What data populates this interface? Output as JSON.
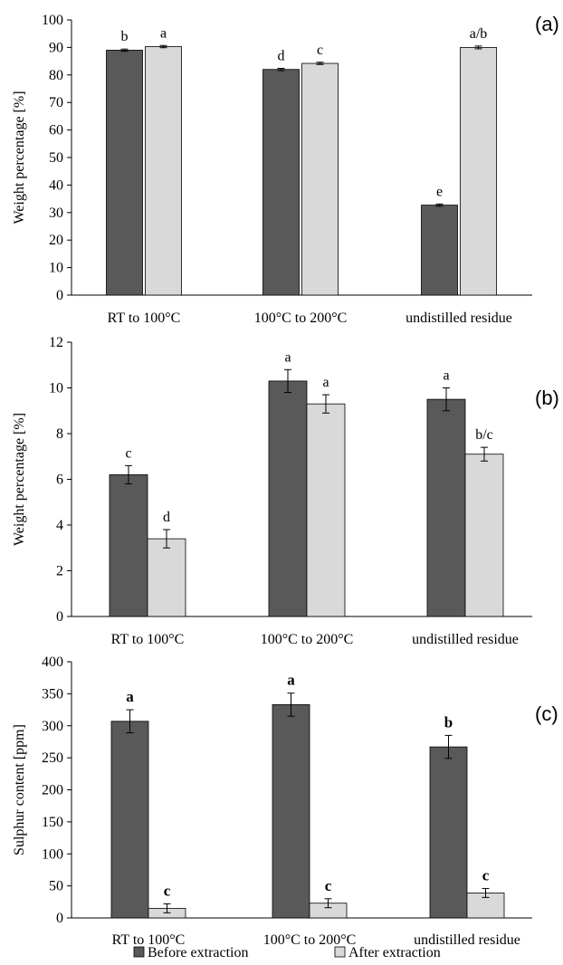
{
  "legend": [
    {
      "label": "Before extraction",
      "color": "#595959"
    },
    {
      "label": "After extraction",
      "color": "#d9d9d9"
    }
  ],
  "colors": {
    "before": "#595959",
    "after": "#d9d9d9",
    "bar_stroke": "#000000",
    "axis": "#000000"
  },
  "chart_data": [
    {
      "type": "bar",
      "panel_label": "(a)",
      "ylabel": "Weight percentage [%]",
      "categories": [
        "RT to 100°C",
        "100°C to 200°C",
        "undistilled residue"
      ],
      "ylim": [
        0,
        100
      ],
      "yticks": [
        0,
        10,
        20,
        30,
        40,
        50,
        60,
        70,
        80,
        90,
        100
      ],
      "grid": false,
      "legend_position": "bottom",
      "series": [
        {
          "name": "Before extraction",
          "values": [
            89.0,
            82.0,
            32.7
          ],
          "errors": [
            0.4,
            0.4,
            0.4
          ],
          "labels": [
            "b",
            "d",
            "e"
          ],
          "bold_labels": false
        },
        {
          "name": "After extraction",
          "values": [
            90.3,
            84.2,
            90.0
          ],
          "errors": [
            0.4,
            0.4,
            0.5
          ],
          "labels": [
            "a",
            "c",
            "a/b"
          ],
          "bold_labels": false
        }
      ]
    },
    {
      "type": "bar",
      "panel_label": "(b)",
      "ylabel": "Weight percentage [%]",
      "categories": [
        "RT to 100°C",
        "100°C to 200°C",
        "undistilled residue"
      ],
      "ylim": [
        0,
        12
      ],
      "yticks": [
        0,
        2,
        4,
        6,
        8,
        10,
        12
      ],
      "grid": false,
      "legend_position": "bottom",
      "series": [
        {
          "name": "Before extraction",
          "values": [
            6.2,
            10.3,
            9.5
          ],
          "errors": [
            0.4,
            0.5,
            0.5
          ],
          "labels": [
            "c",
            "a",
            "a"
          ],
          "bold_labels": false
        },
        {
          "name": "After extraction",
          "values": [
            3.4,
            9.3,
            7.1
          ],
          "errors": [
            0.4,
            0.4,
            0.3
          ],
          "labels": [
            "d",
            "a",
            "b/c"
          ],
          "bold_labels": false
        }
      ]
    },
    {
      "type": "bar",
      "panel_label": "(c)",
      "ylabel": "Sulphur content [ppm]",
      "categories": [
        "RT to 100°C",
        "100°C to 200°C",
        "undistilled residue"
      ],
      "ylim": [
        0,
        400
      ],
      "yticks": [
        0,
        50,
        100,
        150,
        200,
        250,
        300,
        350,
        400
      ],
      "grid": false,
      "legend_position": "bottom",
      "series": [
        {
          "name": "Before extraction",
          "values": [
            307,
            333,
            267
          ],
          "errors": [
            18,
            18,
            18
          ],
          "labels": [
            "a",
            "a",
            "b"
          ],
          "bold_labels": true
        },
        {
          "name": "After extraction",
          "values": [
            15,
            23,
            39
          ],
          "errors": [
            7,
            7,
            7
          ],
          "labels": [
            "c",
            "c",
            "c"
          ],
          "bold_labels": true
        }
      ]
    }
  ]
}
